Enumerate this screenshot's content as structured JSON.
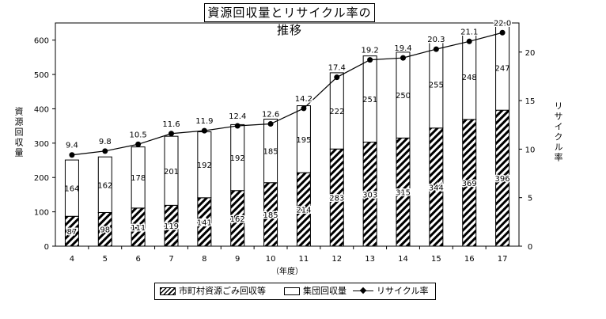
{
  "chart_data": {
    "type": "bar",
    "title": "資源回収量とリサイクル率の推移",
    "xlabel": "（年度）",
    "ylabel": "資源回収量",
    "y2label": "リサイクル率",
    "categories": [
      "4",
      "5",
      "6",
      "7",
      "8",
      "9",
      "10",
      "11",
      "12",
      "13",
      "14",
      "15",
      "16",
      "17"
    ],
    "ylim": [
      0,
      650
    ],
    "yticks": [
      0,
      100,
      200,
      300,
      400,
      500,
      600
    ],
    "y2lim": [
      0,
      23
    ],
    "y2ticks": [
      0,
      5,
      10,
      15,
      20
    ],
    "stacked": true,
    "series": [
      {
        "name": "市町村資源ごみ回収等",
        "style": "hatch",
        "values": [
          87,
          98,
          111,
          119,
          141,
          162,
          185,
          214,
          283,
          303,
          315,
          344,
          369,
          396
        ],
        "labels": [
          "87",
          "98",
          "111",
          "119",
          "141",
          "162",
          "185",
          "214",
          "283",
          "303",
          "315",
          "344",
          "369",
          "396"
        ]
      },
      {
        "name": "集団回収量",
        "style": "plain",
        "values": [
          164,
          162,
          178,
          201,
          192,
          192,
          185,
          195,
          222,
          251,
          250,
          255,
          248,
          247
        ],
        "labels": [
          "164",
          "162",
          "178",
          "201",
          "192",
          "192",
          "185",
          "195",
          "222",
          "251",
          "250",
          "255",
          "248",
          "247"
        ]
      },
      {
        "name": "リサイクル率",
        "type": "line",
        "axis": "right",
        "values": [
          9.4,
          9.8,
          10.5,
          11.6,
          11.9,
          12.4,
          12.6,
          14.2,
          17.4,
          19.2,
          19.4,
          20.3,
          21.1,
          22.0
        ],
        "labels": [
          "9.4",
          "9.8",
          "10.5",
          "11.6",
          "11.9",
          "12.4",
          "12.6",
          "14.2",
          "17.4",
          "19.2",
          "19.4",
          "20.3",
          "21.1",
          "22.0"
        ]
      }
    ],
    "grid": false,
    "legend_position": "bottom"
  },
  "colors": {
    "bar_fill": "#ffffff",
    "ink": "#000000",
    "background": "#ffffff"
  }
}
